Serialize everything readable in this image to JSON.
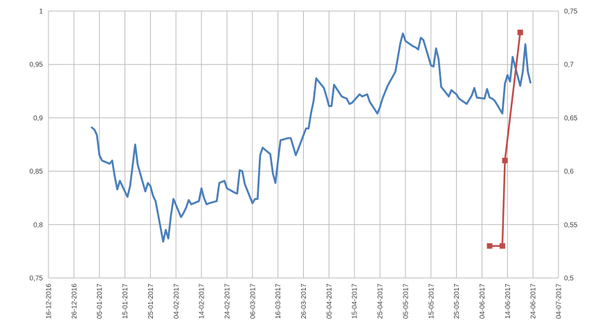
{
  "chart_data": {
    "type": "line",
    "title": "",
    "xlabel": "",
    "ylabel": "",
    "y2label": "",
    "grid": true,
    "legend": "none",
    "x_tick_labels": [
      "16-12-2016",
      "26-12-2016",
      "05-01-2017",
      "15-01-2017",
      "25-01-2017",
      "04-02-2017",
      "14-02-2017",
      "24-02-2017",
      "06-03-2017",
      "16-03-2017",
      "26-03-2017",
      "05-04-2017",
      "15-04-2017",
      "25-04-2017",
      "05-05-2017",
      "15-05-2017",
      "25-05-2017",
      "04-06-2017",
      "14-06-2017",
      "24-06-2017",
      "04-07-2017"
    ],
    "x_range": [
      "2016-12-16",
      "2017-07-04"
    ],
    "y_left": {
      "range": [
        0.75,
        1.0
      ],
      "ticks": [
        0.75,
        0.8,
        0.85,
        0.9,
        0.95,
        1.0
      ],
      "tick_labels": [
        "0,75",
        "0,8",
        "0,85",
        "0,9",
        "0,95",
        "1"
      ]
    },
    "y_right": {
      "range": [
        0.5,
        0.75
      ],
      "ticks": [
        0.5,
        0.55,
        0.6,
        0.65,
        0.7,
        0.75
      ],
      "tick_labels": [
        "0,5",
        "0,55",
        "0,6",
        "0,65",
        "0,7",
        "0,75"
      ]
    },
    "series": [
      {
        "axis": "left",
        "color": "#4a7ebb",
        "marker": "none",
        "x": [
          "2017-01-02",
          "2017-01-03",
          "2017-01-04",
          "2017-01-05",
          "2017-01-06",
          "2017-01-09",
          "2017-01-10",
          "2017-01-11",
          "2017-01-12",
          "2017-01-13",
          "2017-01-16",
          "2017-01-17",
          "2017-01-18",
          "2017-01-19",
          "2017-01-20",
          "2017-01-23",
          "2017-01-24",
          "2017-01-25",
          "2017-01-26",
          "2017-01-27",
          "2017-01-30",
          "2017-01-31",
          "2017-02-01",
          "2017-02-02",
          "2017-02-03",
          "2017-02-06",
          "2017-02-07",
          "2017-02-08",
          "2017-02-09",
          "2017-02-10",
          "2017-02-13",
          "2017-02-14",
          "2017-02-15",
          "2017-02-16",
          "2017-02-17",
          "2017-02-20",
          "2017-02-21",
          "2017-02-22",
          "2017-02-23",
          "2017-02-24",
          "2017-02-27",
          "2017-02-28",
          "2017-03-01",
          "2017-03-02",
          "2017-03-03",
          "2017-03-06",
          "2017-03-07",
          "2017-03-08",
          "2017-03-09",
          "2017-03-10",
          "2017-03-13",
          "2017-03-14",
          "2017-03-15",
          "2017-03-16",
          "2017-03-17",
          "2017-03-20",
          "2017-03-21",
          "2017-03-22",
          "2017-03-23",
          "2017-03-24",
          "2017-03-27",
          "2017-03-28",
          "2017-03-29",
          "2017-03-30",
          "2017-03-31",
          "2017-04-03",
          "2017-04-04",
          "2017-04-05",
          "2017-04-06",
          "2017-04-07",
          "2017-04-10",
          "2017-04-11",
          "2017-04-12",
          "2017-04-13",
          "2017-04-14",
          "2017-04-17",
          "2017-04-18",
          "2017-04-19",
          "2017-04-20",
          "2017-04-21",
          "2017-04-24",
          "2017-04-25",
          "2017-04-26",
          "2017-04-27",
          "2017-04-28",
          "2017-05-01",
          "2017-05-02",
          "2017-05-03",
          "2017-05-04",
          "2017-05-05",
          "2017-05-08",
          "2017-05-09",
          "2017-05-10",
          "2017-05-11",
          "2017-05-12",
          "2017-05-15",
          "2017-05-16",
          "2017-05-17",
          "2017-05-18",
          "2017-05-19",
          "2017-05-22",
          "2017-05-23",
          "2017-05-24",
          "2017-05-25",
          "2017-05-26",
          "2017-05-29",
          "2017-05-30",
          "2017-05-31",
          "2017-06-01",
          "2017-06-02",
          "2017-06-05",
          "2017-06-06",
          "2017-06-07",
          "2017-06-08",
          "2017-06-09",
          "2017-06-12",
          "2017-06-13",
          "2017-06-14",
          "2017-06-15",
          "2017-06-16",
          "2017-06-19",
          "2017-06-20",
          "2017-06-21",
          "2017-06-22",
          "2017-06-23"
        ],
        "values": [
          0.891,
          0.889,
          0.884,
          0.865,
          0.86,
          0.857,
          0.86,
          0.845,
          0.833,
          0.841,
          0.826,
          0.836,
          0.855,
          0.875,
          0.856,
          0.831,
          0.839,
          0.836,
          0.827,
          0.822,
          0.784,
          0.795,
          0.787,
          0.808,
          0.824,
          0.807,
          0.811,
          0.816,
          0.823,
          0.819,
          0.822,
          0.834,
          0.825,
          0.819,
          0.82,
          0.822,
          0.839,
          0.84,
          0.841,
          0.834,
          0.83,
          0.829,
          0.851,
          0.85,
          0.838,
          0.82,
          0.824,
          0.824,
          0.865,
          0.872,
          0.866,
          0.848,
          0.839,
          0.86,
          0.879,
          0.881,
          0.881,
          0.873,
          0.865,
          0.871,
          0.89,
          0.89,
          0.905,
          0.916,
          0.937,
          0.928,
          0.92,
          0.911,
          0.911,
          0.931,
          0.92,
          0.919,
          0.918,
          0.913,
          0.914,
          0.922,
          0.92,
          0.921,
          0.922,
          0.915,
          0.904,
          0.91,
          0.918,
          0.924,
          0.93,
          0.943,
          0.956,
          0.97,
          0.979,
          0.972,
          0.967,
          0.966,
          0.964,
          0.975,
          0.973,
          0.949,
          0.948,
          0.965,
          0.955,
          0.929,
          0.92,
          0.926,
          0.924,
          0.922,
          0.918,
          0.913,
          0.917,
          0.921,
          0.928,
          0.919,
          0.918,
          0.927,
          0.919,
          0.918,
          0.916,
          0.904,
          0.932,
          0.94,
          0.934,
          0.957,
          0.93,
          0.943,
          0.969,
          0.943,
          0.933
        ]
      },
      {
        "axis": "right",
        "color": "#be4b48",
        "marker": "square",
        "x": [
          "2017-06-07",
          "2017-06-12",
          "2017-06-13",
          "2017-06-19"
        ],
        "values": [
          0.53,
          0.53,
          0.61,
          0.73
        ]
      }
    ]
  }
}
